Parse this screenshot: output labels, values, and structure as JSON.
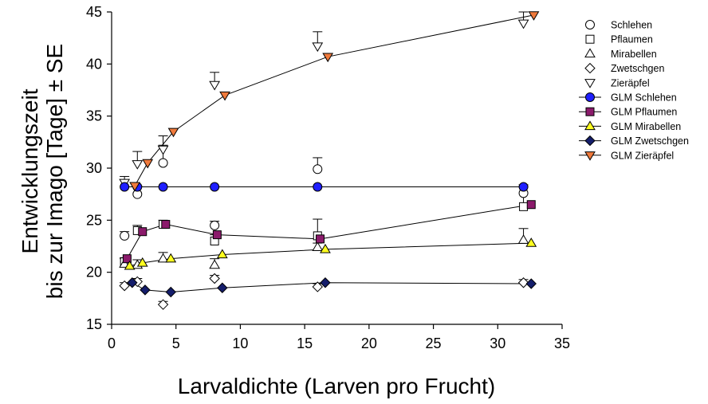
{
  "chart_data": {
    "type": "scatter",
    "xlabel": "Larvaldichte (Larven pro Frucht)",
    "ylabel_lines": [
      "Entwicklungszeit",
      "bis zur Imago [Tage] ± SE"
    ],
    "xlim": [
      0,
      35
    ],
    "ylim": [
      15,
      45
    ],
    "xticks": [
      0,
      5,
      10,
      15,
      20,
      25,
      30,
      35
    ],
    "yticks": [
      15,
      20,
      25,
      30,
      35,
      40,
      45
    ],
    "grid": false,
    "legend_position": "right",
    "observed": [
      {
        "name": "Schlehen",
        "marker": "circle",
        "points": [
          {
            "x": 1,
            "y": 23.5,
            "se": 0.4
          },
          {
            "x": 2,
            "y": 27.5,
            "se": 0.8
          },
          {
            "x": 4,
            "y": 30.5,
            "se": 1.7
          },
          {
            "x": 8,
            "y": 24.5,
            "se": 0.4
          },
          {
            "x": 16,
            "y": 29.9,
            "se": 1.1
          },
          {
            "x": 32,
            "y": 27.6,
            "se": 0.6
          }
        ]
      },
      {
        "name": "Pflaumen",
        "marker": "square",
        "points": [
          {
            "x": 1,
            "y": 21.0,
            "se": 0.4
          },
          {
            "x": 2,
            "y": 24.0,
            "se": 0.5
          },
          {
            "x": 4,
            "y": 24.6,
            "se": 0.4
          },
          {
            "x": 8,
            "y": 23.0,
            "se": 0.6
          },
          {
            "x": 16,
            "y": 23.5,
            "se": 1.6
          },
          {
            "x": 32,
            "y": 26.3,
            "se": 2.1
          }
        ]
      },
      {
        "name": "Mirabellen",
        "marker": "triangle-up",
        "points": [
          {
            "x": 1,
            "y": 20.8,
            "se": 0.5
          },
          {
            "x": 2,
            "y": 20.7,
            "se": 0.5
          },
          {
            "x": 4,
            "y": 21.3,
            "se": 0.6
          },
          {
            "x": 8,
            "y": 20.7,
            "se": 0.6
          },
          {
            "x": 16,
            "y": 22.4,
            "se": 0.4
          },
          {
            "x": 32,
            "y": 23.1,
            "se": 1.1
          }
        ]
      },
      {
        "name": "Zwetschgen",
        "marker": "diamond",
        "points": [
          {
            "x": 1,
            "y": 18.7,
            "se": 0.3
          },
          {
            "x": 2,
            "y": 19.1,
            "se": 0.3
          },
          {
            "x": 4,
            "y": 16.9,
            "se": 0.3
          },
          {
            "x": 8,
            "y": 19.4,
            "se": 0.3
          },
          {
            "x": 16,
            "y": 18.6,
            "se": 0.3
          },
          {
            "x": 32,
            "y": 19.0,
            "se": 0.3
          }
        ]
      },
      {
        "name": "Zieräpfel",
        "marker": "triangle-down",
        "points": [
          {
            "x": 1,
            "y": 28.6,
            "se": 0.6
          },
          {
            "x": 2,
            "y": 30.4,
            "se": 1.2
          },
          {
            "x": 4,
            "y": 31.8,
            "se": 1.3
          },
          {
            "x": 8,
            "y": 38.0,
            "se": 1.2
          },
          {
            "x": 16,
            "y": 41.7,
            "se": 1.4
          },
          {
            "x": 32,
            "y": 43.9,
            "se": 1.1
          }
        ]
      }
    ],
    "fitted": [
      {
        "name": "GLM Schlehen",
        "marker": "circle",
        "color": "#1f1fff",
        "points": [
          [
            1,
            28.2
          ],
          [
            2,
            28.2
          ],
          [
            4,
            28.2
          ],
          [
            8,
            28.2
          ],
          [
            16,
            28.2
          ],
          [
            32,
            28.2
          ]
        ]
      },
      {
        "name": "GLM Pflaumen",
        "marker": "square",
        "color": "#8b1a6b",
        "points": [
          [
            1.2,
            21.3
          ],
          [
            2.4,
            23.9
          ],
          [
            4.2,
            24.6
          ],
          [
            8.2,
            23.6
          ],
          [
            16.2,
            23.2
          ],
          [
            32.6,
            26.5
          ]
        ]
      },
      {
        "name": "GLM Mirabellen",
        "marker": "triangle-up",
        "color": "#ffff1f",
        "points": [
          [
            1.4,
            20.6
          ],
          [
            2.4,
            20.9
          ],
          [
            4.6,
            21.3
          ],
          [
            8.6,
            21.7
          ],
          [
            16.6,
            22.2
          ],
          [
            32.6,
            22.8
          ]
        ]
      },
      {
        "name": "GLM Zwetschgen",
        "marker": "diamond",
        "color": "#141d6b",
        "points": [
          [
            1.6,
            19.0
          ],
          [
            2.6,
            18.3
          ],
          [
            4.6,
            18.1
          ],
          [
            8.6,
            18.5
          ],
          [
            16.6,
            19.0
          ],
          [
            32.6,
            18.9
          ]
        ]
      },
      {
        "name": "GLM Zieräpfel",
        "marker": "triangle-down",
        "color": "#f07a3c",
        "points": [
          [
            1.8,
            28.3
          ],
          [
            2.8,
            30.5
          ],
          [
            4.8,
            33.5
          ],
          [
            8.8,
            37.0
          ],
          [
            16.8,
            40.7
          ],
          [
            32.8,
            44.7
          ]
        ]
      }
    ]
  }
}
